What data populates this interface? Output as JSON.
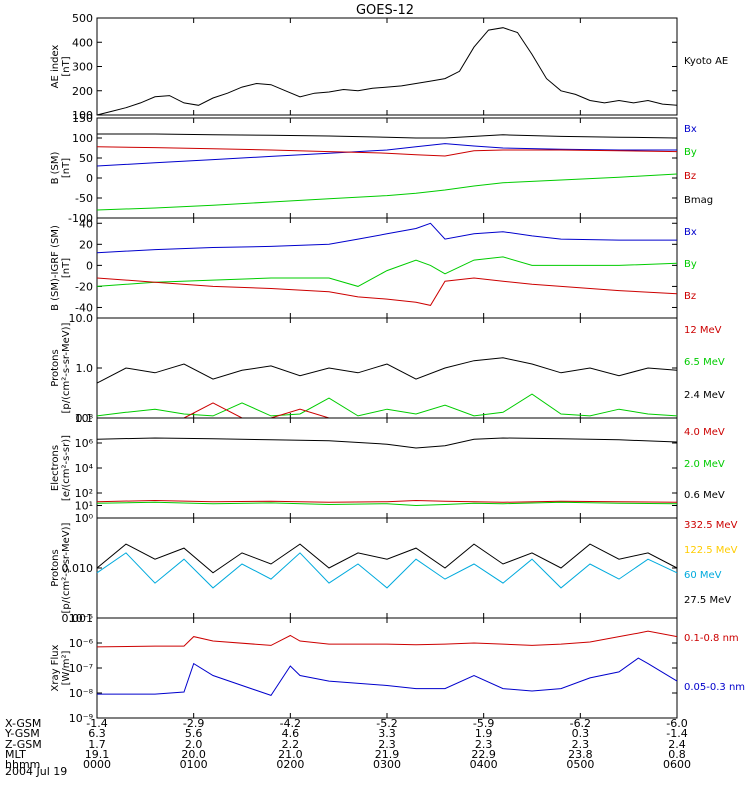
{
  "title": "GOES-12",
  "date_label": "2004 Jul 19",
  "chart_data": [
    {
      "type": "line",
      "ylabel_lines": [
        "AE index",
        "[nT]"
      ],
      "scale": "linear",
      "ylim": [
        100,
        500
      ],
      "yticks": [
        100,
        200,
        300,
        400,
        500
      ],
      "legend": [
        {
          "name": "Kyoto AE",
          "color": "#000000"
        }
      ],
      "x": [
        0,
        15,
        30,
        45,
        60,
        75,
        90,
        105,
        120,
        135,
        150,
        165,
        180,
        195,
        210,
        225,
        240,
        255,
        270,
        285,
        300,
        315,
        330,
        345,
        360,
        375,
        390,
        405,
        420,
        435,
        450,
        465,
        480,
        495,
        510,
        525,
        540,
        555,
        570,
        585,
        600
      ],
      "series": [
        {
          "name": "Kyoto AE",
          "color": "#000000",
          "values": [
            100,
            115,
            130,
            150,
            175,
            180,
            150,
            140,
            170,
            190,
            215,
            230,
            225,
            200,
            175,
            190,
            195,
            205,
            200,
            210,
            215,
            220,
            230,
            240,
            250,
            280,
            380,
            450,
            460,
            440,
            350,
            250,
            200,
            185,
            160,
            150,
            160,
            150,
            160,
            145,
            140
          ]
        }
      ]
    },
    {
      "type": "line",
      "ylabel_lines": [
        "B (SM)",
        "[nT]"
      ],
      "scale": "linear",
      "ylim": [
        -100,
        150
      ],
      "yticks": [
        -100,
        -50,
        0,
        50,
        100,
        150
      ],
      "legend": [
        {
          "name": "Bx",
          "color": "#0000cc"
        },
        {
          "name": "By",
          "color": "#00cc00"
        },
        {
          "name": "Bz",
          "color": "#cc0000"
        },
        {
          "name": "Bmag",
          "color": "#000000"
        }
      ],
      "x": [
        0,
        60,
        120,
        180,
        240,
        300,
        330,
        360,
        390,
        420,
        480,
        540,
        600
      ],
      "series": [
        {
          "name": "Bmag",
          "color": "#000000",
          "values": [
            110,
            110,
            108,
            107,
            105,
            102,
            100,
            100,
            104,
            108,
            104,
            102,
            100
          ]
        },
        {
          "name": "Bx",
          "color": "#0000cc",
          "values": [
            30,
            38,
            46,
            54,
            62,
            70,
            78,
            86,
            80,
            75,
            72,
            70,
            70
          ]
        },
        {
          "name": "Bz",
          "color": "#cc0000",
          "values": [
            78,
            76,
            73,
            70,
            66,
            62,
            58,
            55,
            68,
            70,
            70,
            68,
            66
          ]
        },
        {
          "name": "By",
          "color": "#00cc00",
          "values": [
            -80,
            -75,
            -68,
            -60,
            -52,
            -44,
            -38,
            -30,
            -20,
            -12,
            -5,
            2,
            10
          ]
        }
      ]
    },
    {
      "type": "line",
      "ylabel_lines": [
        "B (SM)-IGRF (SM)",
        "[nT]"
      ],
      "scale": "linear",
      "ylim": [
        -50,
        45
      ],
      "yticks": [
        -40,
        -20,
        0,
        20,
        40
      ],
      "legend": [
        {
          "name": "Bx",
          "color": "#0000cc"
        },
        {
          "name": "By",
          "color": "#00cc00"
        },
        {
          "name": "Bz",
          "color": "#cc0000"
        }
      ],
      "x": [
        0,
        60,
        120,
        180,
        240,
        270,
        300,
        330,
        345,
        360,
        390,
        420,
        450,
        480,
        540,
        600
      ],
      "series": [
        {
          "name": "Bx",
          "color": "#0000cc",
          "values": [
            12,
            15,
            17,
            18,
            20,
            25,
            30,
            35,
            40,
            25,
            30,
            32,
            28,
            25,
            24,
            24
          ]
        },
        {
          "name": "By",
          "color": "#00cc00",
          "values": [
            -20,
            -16,
            -14,
            -12,
            -12,
            -20,
            -5,
            5,
            0,
            -8,
            5,
            8,
            0,
            0,
            0,
            2
          ]
        },
        {
          "name": "Bz",
          "color": "#cc0000",
          "values": [
            -12,
            -16,
            -20,
            -22,
            -25,
            -30,
            -32,
            -35,
            -38,
            -15,
            -12,
            -15,
            -18,
            -20,
            -24,
            -27
          ]
        }
      ]
    },
    {
      "type": "line",
      "ylabel_lines": [
        "Protons",
        "[p/(cm²-s-sr-MeV)]"
      ],
      "scale": "log",
      "ylim": [
        0.1,
        10.0
      ],
      "yticks": [
        0.1,
        1.0,
        10.0
      ],
      "ytick_labels": [
        "0.1",
        "1.0",
        "10.0"
      ],
      "legend": [
        {
          "name": "12 MeV",
          "color": "#cc0000"
        },
        {
          "name": "6.5 MeV",
          "color": "#00cc00"
        },
        {
          "name": "2.4 MeV",
          "color": "#000000"
        }
      ],
      "x": [
        0,
        30,
        60,
        90,
        120,
        150,
        180,
        210,
        240,
        270,
        300,
        330,
        360,
        390,
        420,
        450,
        480,
        510,
        540,
        570,
        600
      ],
      "series": [
        {
          "name": "2.4 MeV",
          "color": "#000000",
          "values": [
            0.5,
            1.0,
            0.8,
            1.2,
            0.6,
            0.9,
            1.1,
            0.7,
            1.0,
            0.8,
            1.2,
            0.6,
            1.0,
            1.4,
            1.6,
            1.2,
            0.8,
            1.0,
            0.7,
            1.0,
            0.9
          ]
        },
        {
          "name": "6.5 MeV",
          "color": "#00cc00",
          "values": [
            0.11,
            0.13,
            0.15,
            0.12,
            0.11,
            0.2,
            0.11,
            0.12,
            0.25,
            0.11,
            0.15,
            0.12,
            0.18,
            0.11,
            0.13,
            0.3,
            0.12,
            0.11,
            0.15,
            0.12,
            0.11
          ]
        },
        {
          "name": "12 MeV",
          "color": "#cc0000",
          "values": [
            0.1,
            0.1,
            0.1,
            0.1,
            0.2,
            0.1,
            0.1,
            0.15,
            0.1,
            0.1,
            0.1,
            0.1,
            0.1,
            0.1,
            0.1,
            0.1,
            0.1,
            0.1,
            0.1,
            0.1,
            0.1
          ]
        }
      ]
    },
    {
      "type": "line",
      "ylabel_lines": [
        "Electrons",
        "[e/(cm²-s-sr)]"
      ],
      "scale": "log",
      "ylim": [
        1.0,
        100000000.0
      ],
      "yticks": [
        1.0,
        10.0,
        100.0,
        10000.0,
        1000000.0,
        100000000.0
      ],
      "ytick_labels": [
        "10⁰",
        "10¹",
        "10²",
        "10⁴",
        "10⁶",
        "10⁸"
      ],
      "legend": [
        {
          "name": "4.0 MeV",
          "color": "#cc0000"
        },
        {
          "name": "2.0 MeV",
          "color": "#00cc00"
        },
        {
          "name": "0.6 MeV",
          "color": "#000000"
        }
      ],
      "x": [
        0,
        60,
        120,
        180,
        240,
        300,
        330,
        360,
        390,
        420,
        480,
        540,
        600
      ],
      "series": [
        {
          "name": "0.6 MeV",
          "color": "#000000",
          "values": [
            2000000.0,
            2500000.0,
            2200000.0,
            1800000.0,
            1500000.0,
            800000.0,
            400000.0,
            600000.0,
            2000000.0,
            2500000.0,
            2200000.0,
            1800000.0,
            1200000.0
          ]
        },
        {
          "name": "4.0 MeV",
          "color": "#cc0000",
          "values": [
            20,
            25,
            20,
            22,
            18,
            20,
            25,
            22,
            20,
            18,
            22,
            20,
            18
          ]
        },
        {
          "name": "2.0 MeV",
          "color": "#00cc00",
          "values": [
            15,
            18,
            14,
            16,
            12,
            14,
            10,
            12,
            15,
            14,
            18,
            15,
            14
          ]
        }
      ]
    },
    {
      "type": "line",
      "ylabel_lines": [
        "Protons",
        "[p/(cm²-s-sr-MeV)]"
      ],
      "scale": "log",
      "ylim": [
        0.001,
        0.1
      ],
      "yticks": [
        0.001,
        0.01
      ],
      "ytick_labels": [
        "0.001",
        "0.010"
      ],
      "legend": [
        {
          "name": "332.5 MeV",
          "color": "#cc0000"
        },
        {
          "name": "122.5 MeV",
          "color": "#ffcc00"
        },
        {
          "name": "60 MeV",
          "color": "#00aadd"
        },
        {
          "name": "27.5 MeV",
          "color": "#000000"
        }
      ],
      "x": [
        0,
        30,
        60,
        90,
        120,
        150,
        180,
        210,
        240,
        270,
        300,
        330,
        360,
        390,
        420,
        450,
        480,
        510,
        540,
        570,
        600
      ],
      "series": [
        {
          "name": "27.5 MeV",
          "color": "#000000",
          "values": [
            0.01,
            0.03,
            0.015,
            0.025,
            0.008,
            0.02,
            0.012,
            0.03,
            0.01,
            0.02,
            0.015,
            0.025,
            0.01,
            0.03,
            0.012,
            0.02,
            0.01,
            0.03,
            0.015,
            0.02,
            0.01
          ]
        },
        {
          "name": "60 MeV",
          "color": "#00aadd",
          "values": [
            0.008,
            0.02,
            0.005,
            0.015,
            0.004,
            0.012,
            0.006,
            0.02,
            0.005,
            0.012,
            0.004,
            0.015,
            0.006,
            0.012,
            0.005,
            0.015,
            0.004,
            0.012,
            0.006,
            0.015,
            0.008
          ]
        }
      ]
    },
    {
      "type": "line",
      "ylabel_lines": [
        "Xray  Flux",
        "[W/m²]"
      ],
      "scale": "log",
      "ylim": [
        1e-09,
        1e-05
      ],
      "yticks": [
        1e-09,
        1e-08,
        1e-07,
        1e-06,
        1e-05
      ],
      "ytick_labels": [
        "10⁻⁹",
        "10⁻⁸",
        "10⁻⁷",
        "10⁻⁶",
        "10⁻⁵"
      ],
      "legend": [
        {
          "name": "0.1-0.8 nm",
          "color": "#cc0000"
        },
        {
          "name": "0.05-0.3 nm",
          "color": "#0000cc"
        }
      ],
      "x": [
        0,
        60,
        90,
        100,
        120,
        180,
        200,
        210,
        240,
        300,
        330,
        360,
        390,
        420,
        450,
        480,
        510,
        540,
        560,
        570,
        600
      ],
      "series": [
        {
          "name": "0.1-0.8 nm",
          "color": "#cc0000",
          "values": [
            7e-07,
            7.5e-07,
            7.5e-07,
            1.8e-06,
            1.2e-06,
            8e-07,
            2e-06,
            1.2e-06,
            9e-07,
            9e-07,
            8.5e-07,
            9e-07,
            1e-06,
            9e-07,
            8e-07,
            9e-07,
            1.1e-06,
            1.8e-06,
            2.5e-06,
            3e-06,
            1.8e-06
          ]
        },
        {
          "name": "0.05-0.3 nm",
          "color": "#0000cc",
          "values": [
            9e-09,
            9e-09,
            1.1e-08,
            1.5e-07,
            5e-08,
            8e-09,
            1.2e-07,
            5e-08,
            3e-08,
            2e-08,
            1.5e-08,
            1.5e-08,
            5e-08,
            1.5e-08,
            1.2e-08,
            1.5e-08,
            4e-08,
            7e-08,
            2.5e-07,
            1.5e-07,
            3e-08
          ]
        }
      ]
    }
  ],
  "x_axis_table": [
    {
      "label": "X-GSM",
      "values": [
        "-1.4",
        "-2.9",
        "-4.2",
        "-5.2",
        "-5.9",
        "-6.2",
        "-6.0"
      ]
    },
    {
      "label": "Y-GSM",
      "values": [
        "6.3",
        "5.6",
        "4.6",
        "3.3",
        "1.9",
        "0.3",
        "-1.4"
      ]
    },
    {
      "label": "Z-GSM",
      "values": [
        "1.7",
        "2.0",
        "2.2",
        "2.3",
        "2.3",
        "2.3",
        "2.4"
      ]
    },
    {
      "label": "MLT",
      "values": [
        "19.1",
        "20.0",
        "21.0",
        "21.9",
        "22.9",
        "23.8",
        "0.8"
      ]
    },
    {
      "label": "hhmm",
      "values": [
        "0000",
        "0100",
        "0200",
        "0300",
        "0400",
        "0500",
        "0600"
      ]
    }
  ],
  "x_ticks": [
    0,
    100,
    200,
    300,
    400,
    500,
    600
  ]
}
